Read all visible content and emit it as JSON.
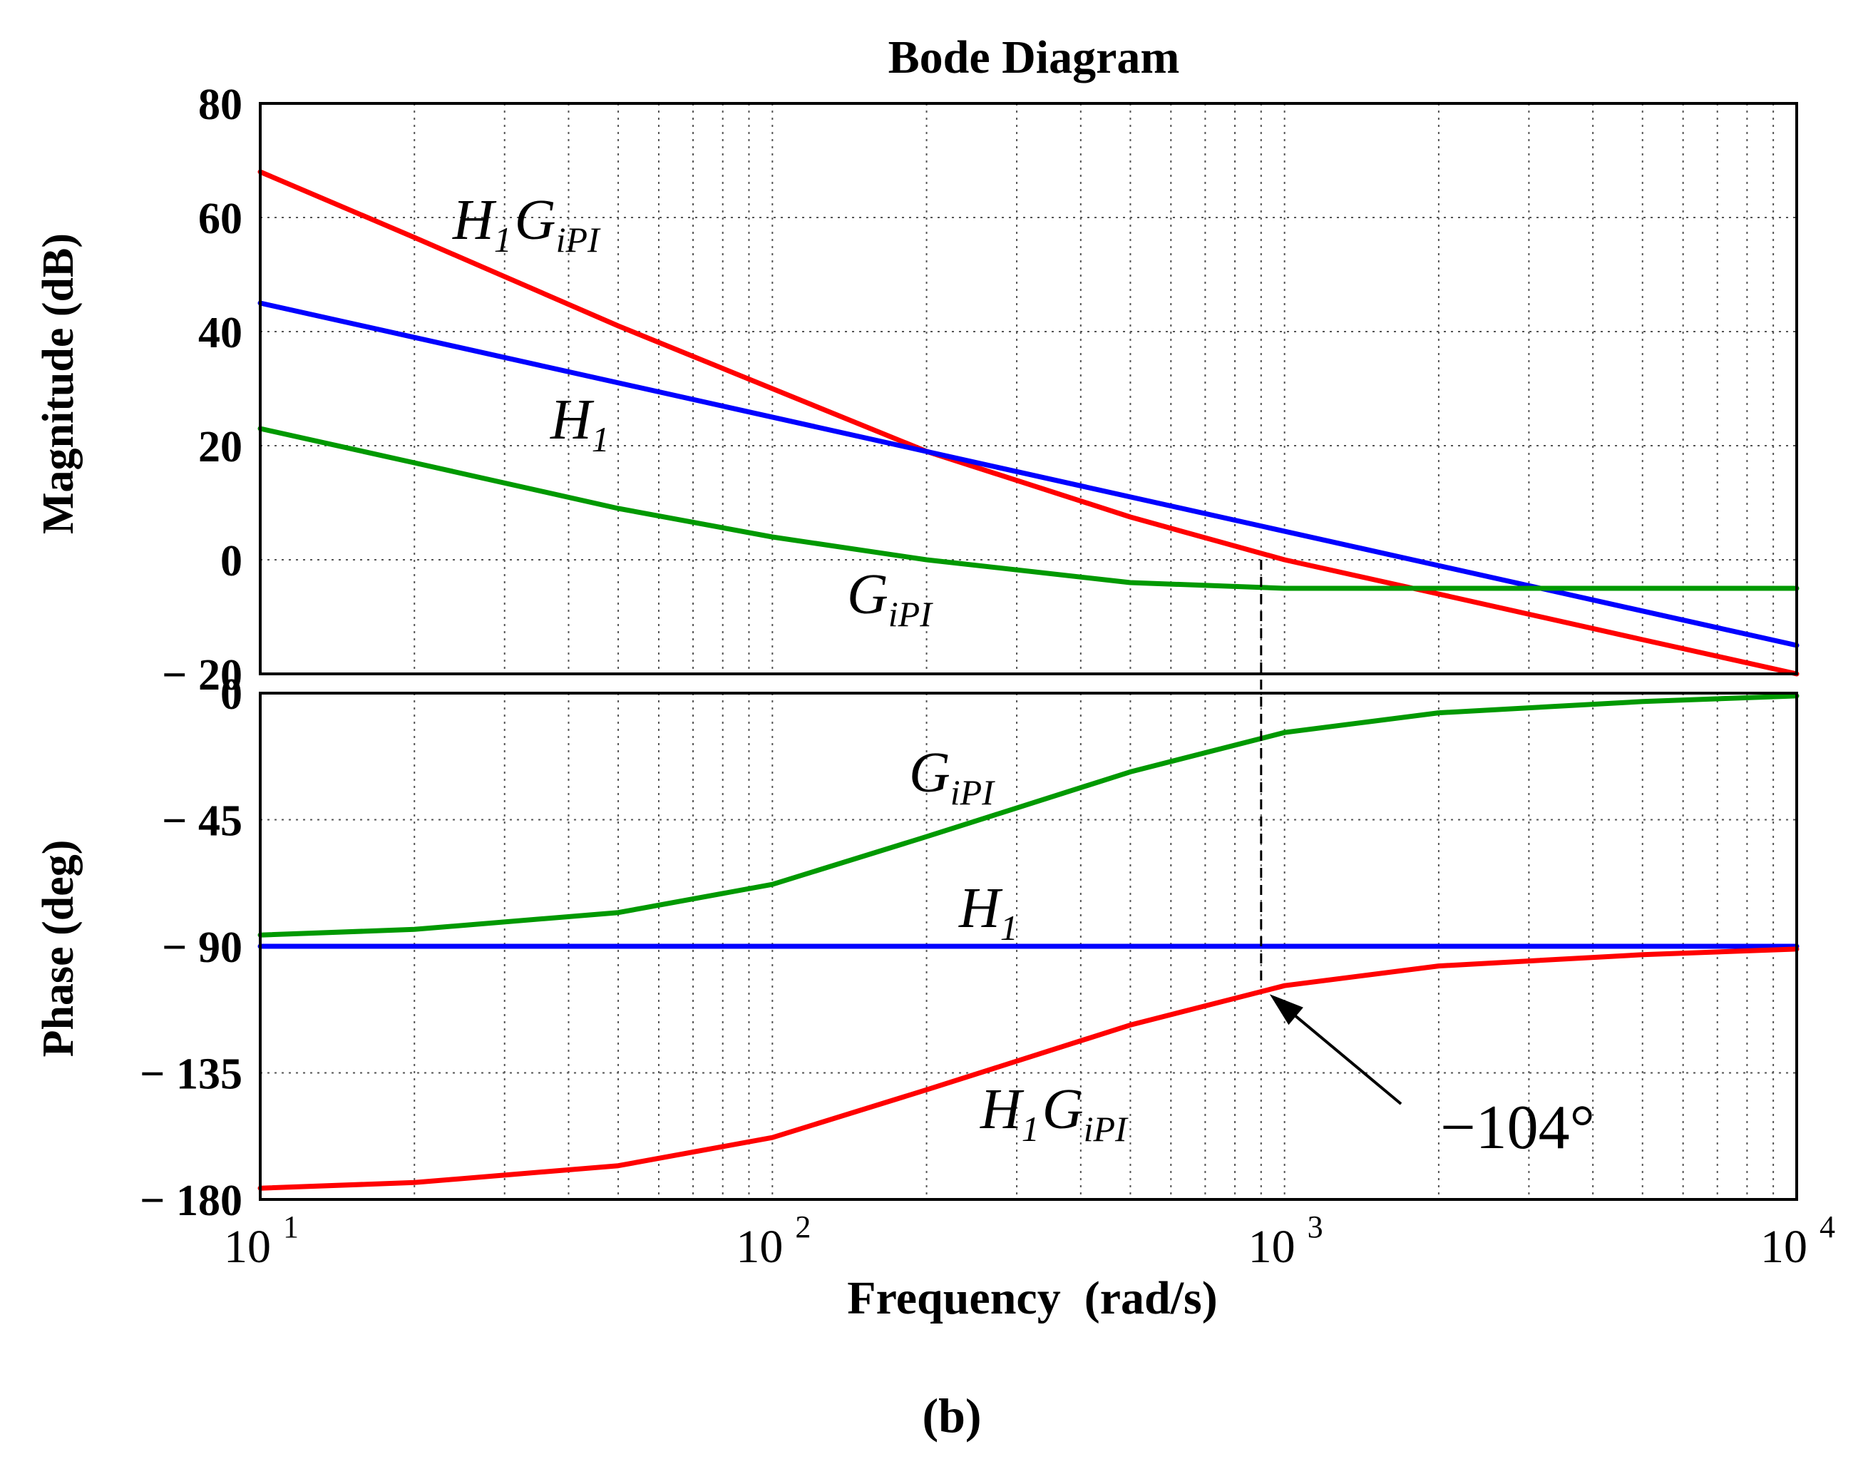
{
  "chart_data": {
    "type": "line",
    "title": "Bode Diagram",
    "xlabel": "Frequency  (rad/s)",
    "x_scale": "log",
    "xlim": [
      10,
      10000
    ],
    "x_ticks": [
      {
        "base": "10",
        "exp": "1"
      },
      {
        "base": "10",
        "exp": "2"
      },
      {
        "base": "10",
        "exp": "3"
      },
      {
        "base": "10",
        "exp": "4"
      }
    ],
    "caption": "(b)",
    "magnitude": {
      "ylabel": "Magnitude (dB)",
      "ylim": [
        -20,
        80
      ],
      "yticks": [
        80,
        60,
        40,
        20,
        0,
        -20
      ],
      "ytick_labels": [
        "80",
        "60",
        "40",
        "20",
        "0",
        "− 20"
      ],
      "grid": true,
      "series": [
        {
          "name": "H1GiPI",
          "color": "#ff0000",
          "x": [
            10,
            20,
            50,
            100,
            200,
            500,
            1000,
            2000,
            5000,
            10000
          ],
          "y": [
            68,
            56.5,
            41,
            30,
            19,
            7.5,
            0,
            -6,
            -14,
            -20
          ]
        },
        {
          "name": "H1",
          "color": "#0000ff",
          "x": [
            10,
            10000
          ],
          "y": [
            45,
            -15
          ]
        },
        {
          "name": "GiPI",
          "color": "#009900",
          "x": [
            10,
            20,
            50,
            100,
            200,
            500,
            1000,
            2000,
            5000,
            10000
          ],
          "y": [
            23,
            17,
            9,
            4,
            0,
            -4,
            -5,
            -5,
            -5,
            -5
          ]
        }
      ],
      "labels": [
        {
          "main": "H",
          "sub1": "1",
          "main2": "G",
          "sub2": "iPI",
          "series": "H1GiPI"
        },
        {
          "main": "H",
          "sub1": "1",
          "main2": "",
          "sub2": "",
          "series": "H1"
        },
        {
          "main": "G",
          "sub1": "iPI",
          "main2": "",
          "sub2": "",
          "series": "GiPI"
        }
      ]
    },
    "phase": {
      "ylabel": "Phase (deg)",
      "ylim": [
        -180,
        0
      ],
      "yticks": [
        0,
        -45,
        -90,
        -135,
        -180
      ],
      "ytick_labels": [
        "0",
        "− 45",
        "− 90",
        "− 135",
        "− 180"
      ],
      "grid": true,
      "series": [
        {
          "name": "GiPI",
          "color": "#009900",
          "x": [
            10,
            20,
            50,
            100,
            200,
            500,
            1000,
            2000,
            5000,
            10000
          ],
          "y": [
            -86,
            -84,
            -78,
            -68,
            -51,
            -28,
            -14,
            -7,
            -3,
            -1
          ]
        },
        {
          "name": "H1",
          "color": "#0000ff",
          "x": [
            10,
            10000
          ],
          "y": [
            -90,
            -90
          ]
        },
        {
          "name": "H1GiPI",
          "color": "#ff0000",
          "x": [
            10,
            20,
            50,
            100,
            200,
            500,
            1000,
            2000,
            5000,
            10000
          ],
          "y": [
            -176,
            -174,
            -168,
            -158,
            -141,
            -118,
            -104,
            -97,
            -93,
            -91
          ]
        }
      ],
      "labels": [
        {
          "main": "G",
          "sub1": "iPI",
          "main2": "",
          "sub2": "",
          "series": "GiPI"
        },
        {
          "main": "H",
          "sub1": "1",
          "main2": "",
          "sub2": "",
          "series": "H1"
        },
        {
          "main": "H",
          "sub1": "1",
          "main2": "G",
          "sub2": "iPI",
          "series": "H1GiPI"
        }
      ]
    },
    "annotation": {
      "text": "−104°",
      "x": 900,
      "phase_value": -104,
      "crossover_description": "dashed vertical line at gain crossover"
    }
  }
}
